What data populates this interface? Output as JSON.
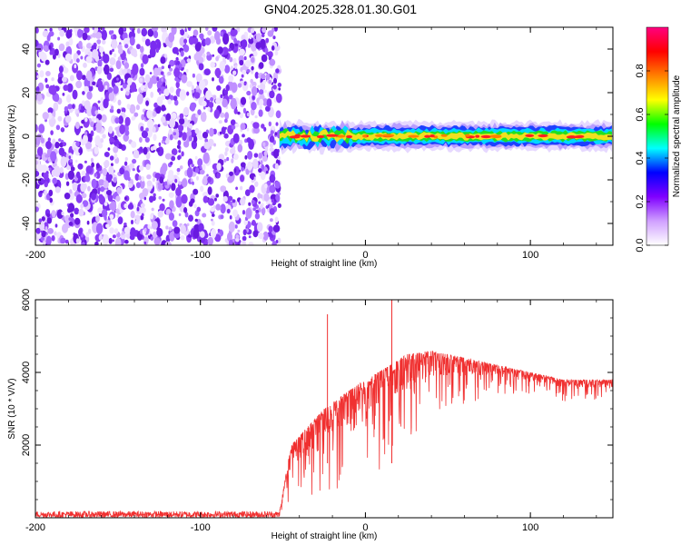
{
  "title": "GN04.2025.328.01.30.G01",
  "colors": {
    "snr_line": "#f03030",
    "spectrogram_scatter": "#7a2cf0"
  },
  "chart_data": [
    {
      "type": "heatmap",
      "name": "spectrogram",
      "xlabel": "Height of straight line (km)",
      "ylabel": "Frequency (Hz)",
      "xlim": [
        -200,
        150
      ],
      "ylim": [
        -50,
        50
      ],
      "x_ticks": [
        -200,
        -100,
        0,
        100
      ],
      "y_ticks": [
        -40,
        -20,
        0,
        20,
        40
      ],
      "noise_region_x": [
        -200,
        -52
      ],
      "signal_band": {
        "x_start": -52,
        "x_end": 150,
        "center_freq": 0,
        "half_width_hz": 4
      },
      "colorbar": {
        "label": "Normalized spectral amplitude",
        "range": [
          0,
          1
        ],
        "ticks": [
          "0.0",
          "0.2",
          "0.4",
          "0.6",
          "0.8"
        ],
        "colormap": [
          "#ffffff",
          "#d0a0ff",
          "#8000ff",
          "#0000ff",
          "#00ffff",
          "#00ff00",
          "#ffff00",
          "#ff8000",
          "#ff0000",
          "#ff0080"
        ]
      }
    },
    {
      "type": "line",
      "name": "snr",
      "xlabel": "Height of straight line (km)",
      "ylabel": "SNR (10 * V/V)",
      "xlim": [
        -200,
        150
      ],
      "ylim": [
        0,
        6000
      ],
      "x_ticks": [
        -200,
        -100,
        0,
        100
      ],
      "y_ticks": [
        2000,
        4000,
        6000
      ],
      "envelope": [
        {
          "x": -200,
          "low": 0,
          "high": 200
        },
        {
          "x": -52,
          "low": 0,
          "high": 200
        },
        {
          "x": -45,
          "low": 300,
          "high": 2000
        },
        {
          "x": -35,
          "low": 300,
          "high": 2500
        },
        {
          "x": -25,
          "low": 500,
          "high": 3000
        },
        {
          "x": -10,
          "low": 800,
          "high": 3500
        },
        {
          "x": 0,
          "low": 1000,
          "high": 3800
        },
        {
          "x": 15,
          "low": 1500,
          "high": 4200
        },
        {
          "x": 25,
          "low": 2200,
          "high": 4500
        },
        {
          "x": 40,
          "low": 2600,
          "high": 4600
        },
        {
          "x": 60,
          "low": 3000,
          "high": 4400
        },
        {
          "x": 80,
          "low": 3400,
          "high": 4200
        },
        {
          "x": 100,
          "low": 3400,
          "high": 4000
        },
        {
          "x": 120,
          "low": 3200,
          "high": 3800
        },
        {
          "x": 150,
          "low": 3200,
          "high": 3800
        }
      ],
      "spikes": [
        {
          "x": -23,
          "y": 5600
        },
        {
          "x": 16,
          "y": 6000
        }
      ]
    }
  ]
}
